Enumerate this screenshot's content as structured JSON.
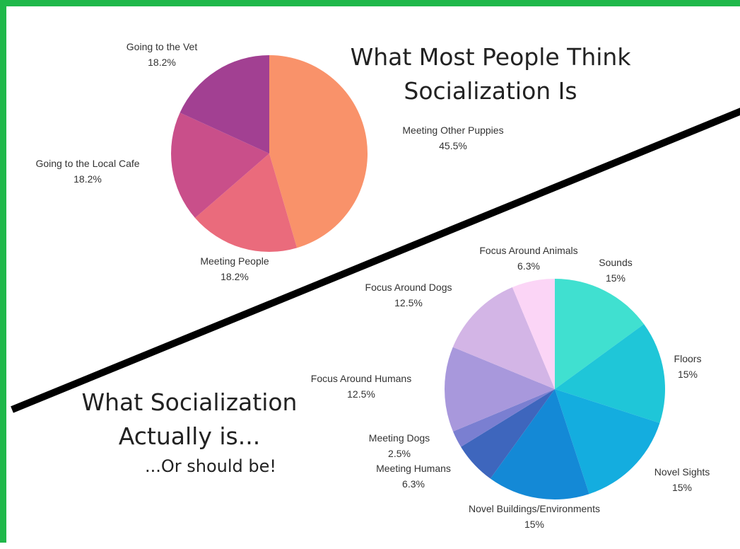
{
  "colors": {
    "frame": "#1fb84a",
    "divider": "#000000"
  },
  "titles": {
    "top": "What Most People Think Socialization Is",
    "top_line1": "What Most People Think",
    "top_line2": "Socialization Is",
    "bottom_line1": "What Socialization",
    "bottom_line2": "Actually is...",
    "bottom_line3": "...Or should be!"
  },
  "chart_data": [
    {
      "type": "pie",
      "title": "What Most People Think Socialization Is",
      "slices": [
        {
          "label": "Meeting Other Puppies",
          "value": 45.5,
          "display": "45.5%",
          "color": "#f9926a"
        },
        {
          "label": "Meeting People",
          "value": 18.2,
          "display": "18.2%",
          "color": "#ea6b7c"
        },
        {
          "label": "Going to the Local Cafe",
          "value": 18.2,
          "display": "18.2%",
          "color": "#c94f8a"
        },
        {
          "label": "Going to the Vet",
          "value": 18.2,
          "display": "18.2%",
          "color": "#a24092"
        }
      ]
    },
    {
      "type": "pie",
      "title": "What Socialization Actually is... ...Or should be!",
      "slices": [
        {
          "label": "Sounds",
          "value": 15,
          "display": "15%",
          "color": "#40e0d0"
        },
        {
          "label": "Floors",
          "value": 15,
          "display": "15%",
          "color": "#1fc6d8"
        },
        {
          "label": "Novel Sights",
          "value": 15,
          "display": "15%",
          "color": "#14addf"
        },
        {
          "label": "Novel Buildings/Environments",
          "value": 15,
          "display": "15%",
          "color": "#1489d6"
        },
        {
          "label": "Meeting Humans",
          "value": 6.3,
          "display": "6.3%",
          "color": "#3e66bd"
        },
        {
          "label": "Meeting Dogs",
          "value": 2.5,
          "display": "2.5%",
          "color": "#7a7fd1"
        },
        {
          "label": "Focus Around Humans",
          "value": 12.5,
          "display": "12.5%",
          "color": "#a898dc"
        },
        {
          "label": "Focus Around Dogs",
          "value": 12.5,
          "display": "12.5%",
          "color": "#d3b5e6"
        },
        {
          "label": "Focus Around Animals",
          "value": 6.3,
          "display": "6.3%",
          "color": "#fbd5f6"
        }
      ]
    }
  ]
}
